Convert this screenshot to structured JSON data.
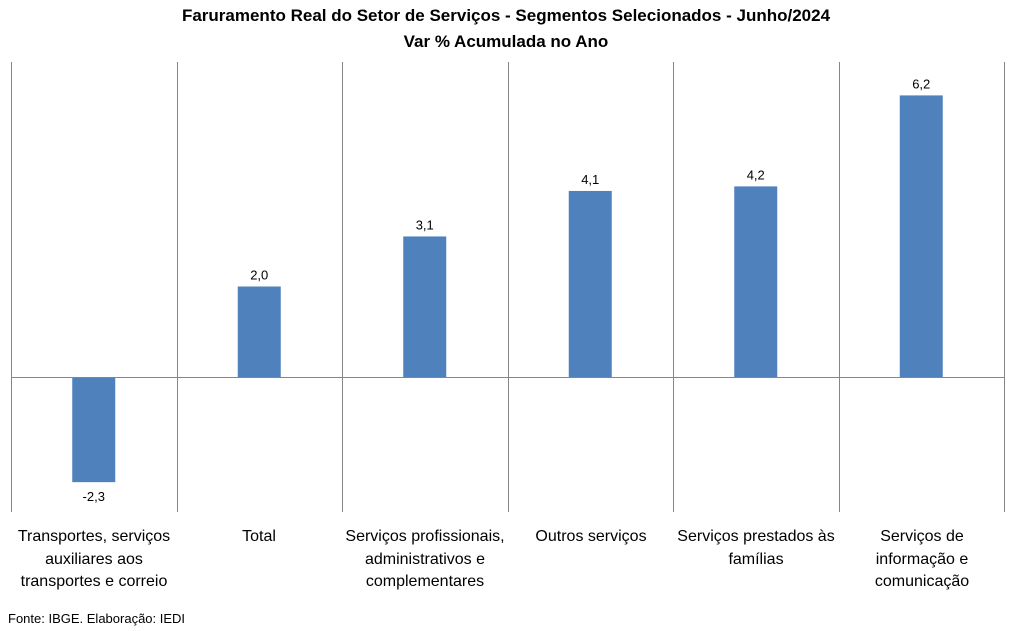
{
  "chart_data": {
    "type": "bar",
    "title": "Faruramento  Real do Setor de Serviços - Segmentos Selecionados  - Junho/2024",
    "subtitle": "Var % Acumulada no Ano",
    "categories": [
      "Transportes, serviços auxiliares aos transportes e correio",
      "Total",
      "Serviços profissionais, administrativos e complementares",
      "Outros serviços",
      "Serviços prestados às famílias",
      "Serviços de informação e comunicação"
    ],
    "values": [
      -2.3,
      2.0,
      3.1,
      4.1,
      4.2,
      6.2
    ],
    "data_labels": [
      "-2,3",
      "2,0",
      "3,1",
      "4,1",
      "4,2",
      "6,2"
    ],
    "ylim": [
      -3.0,
      7.0
    ],
    "color": "#4f81bd",
    "grid": true,
    "xlabel": "",
    "ylabel": ""
  },
  "source": "Fonte: IBGE. Elaboração: IEDI"
}
